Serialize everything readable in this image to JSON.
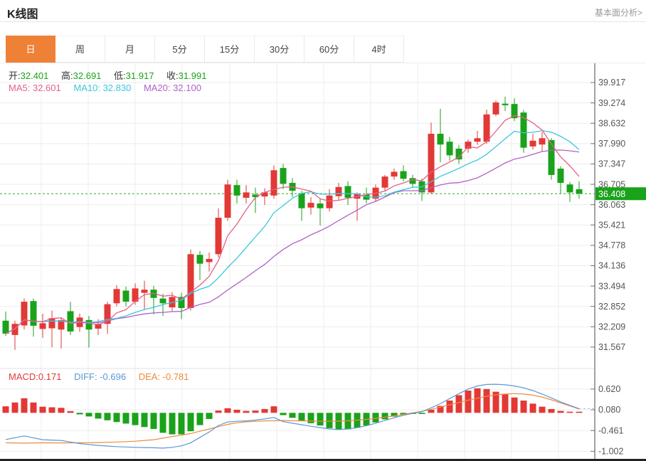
{
  "header": {
    "title": "K线图",
    "link": "基本面分析>"
  },
  "tabs": [
    {
      "label": "日",
      "active": true
    },
    {
      "label": "周",
      "active": false
    },
    {
      "label": "月",
      "active": false
    },
    {
      "label": "5分",
      "active": false
    },
    {
      "label": "15分",
      "active": false
    },
    {
      "label": "30分",
      "active": false
    },
    {
      "label": "60分",
      "active": false
    },
    {
      "label": "4时",
      "active": false
    }
  ],
  "ohlc": {
    "open_label": "开:",
    "open": "32.401",
    "high_label": "高:",
    "high": "32.691",
    "low_label": "低:",
    "low": "31.917",
    "close_label": "收:",
    "close": "31.991"
  },
  "ma": {
    "ma5_label": "MA5:",
    "ma5": "32.601",
    "ma10_label": "MA10:",
    "ma10": "32.830",
    "ma20_label": "MA20:",
    "ma20": "32.100"
  },
  "macd_legend": {
    "macd_label": "MACD:",
    "macd": "0.171",
    "diff_label": "DIFF:",
    "diff": "-0.696",
    "dea_label": "DEA:",
    "dea": "-0.781"
  },
  "colors": {
    "accent_orange": "#ef8137",
    "up_red": "#e23936",
    "down_green": "#1aa21a",
    "ma5_pink": "#e4608a",
    "ma10_cyan": "#3cc7dc",
    "ma20_purple": "#b160c8",
    "diff_blue": "#5b97d5",
    "dea_orange": "#ee8b3c",
    "price_line_green": "#2da52d",
    "badge_green": "#1aa21a",
    "grid": "#ededed",
    "axis_text": "#555555",
    "axis_line": "#444444"
  },
  "chart_data": {
    "type": "candlestick-with-macd",
    "title": "K线图 daily candlestick with MA5/MA10/MA20 and MACD",
    "price_panel": {
      "axis_ticks": [
        "39.917",
        "39.274",
        "38.632",
        "37.990",
        "37.347",
        "36.705",
        "36.063",
        "35.421",
        "34.778",
        "34.136",
        "33.494",
        "32.852",
        "32.209",
        "31.567"
      ],
      "current_price": "36.408",
      "ma_periods": [
        5,
        10,
        20
      ],
      "grid": true,
      "legend_position": "top-left",
      "candles_ohlc": [
        [
          32.401,
          32.691,
          31.917,
          31.991
        ],
        [
          31.95,
          32.4,
          31.48,
          32.3
        ],
        [
          32.25,
          33.1,
          32.12,
          33.0
        ],
        [
          33.02,
          33.1,
          31.9,
          32.24
        ],
        [
          32.14,
          32.62,
          31.86,
          32.32
        ],
        [
          32.16,
          32.72,
          31.56,
          32.48
        ],
        [
          32.12,
          32.5,
          31.52,
          32.42
        ],
        [
          32.7,
          33.0,
          31.95,
          32.06
        ],
        [
          32.2,
          32.62,
          32.05,
          32.5
        ],
        [
          32.42,
          32.55,
          31.55,
          32.12
        ],
        [
          32.15,
          32.45,
          31.95,
          32.3
        ],
        [
          32.3,
          33.0,
          31.98,
          32.92
        ],
        [
          32.95,
          33.52,
          32.85,
          33.4
        ],
        [
          33.35,
          33.48,
          32.85,
          33.0
        ],
        [
          33.0,
          33.58,
          32.9,
          33.42
        ],
        [
          33.28,
          33.66,
          32.75,
          33.38
        ],
        [
          33.38,
          33.5,
          32.6,
          33.12
        ],
        [
          33.1,
          33.25,
          32.55,
          32.95
        ],
        [
          32.82,
          33.3,
          32.7,
          33.15
        ],
        [
          33.15,
          33.28,
          32.45,
          32.8
        ],
        [
          32.8,
          34.65,
          32.72,
          34.5
        ],
        [
          34.48,
          34.6,
          33.68,
          34.2
        ],
        [
          34.25,
          34.55,
          33.95,
          34.35
        ],
        [
          34.5,
          35.95,
          34.4,
          35.65
        ],
        [
          35.65,
          36.85,
          35.55,
          36.7
        ],
        [
          36.68,
          36.85,
          36.1,
          36.35
        ],
        [
          36.28,
          36.68,
          36.1,
          36.45
        ],
        [
          36.38,
          36.6,
          35.8,
          36.3
        ],
        [
          36.32,
          36.58,
          36.05,
          36.45
        ],
        [
          36.35,
          37.3,
          36.25,
          37.15
        ],
        [
          37.22,
          37.35,
          36.55,
          36.72
        ],
        [
          36.75,
          36.9,
          36.3,
          36.5
        ],
        [
          36.42,
          36.5,
          35.55,
          35.95
        ],
        [
          35.97,
          36.3,
          35.75,
          36.12
        ],
        [
          36.1,
          36.25,
          35.4,
          35.95
        ],
        [
          35.95,
          36.55,
          35.85,
          36.35
        ],
        [
          36.33,
          36.75,
          36.2,
          36.62
        ],
        [
          36.65,
          36.8,
          36.05,
          36.28
        ],
        [
          36.25,
          36.45,
          35.55,
          36.4
        ],
        [
          36.38,
          36.6,
          36.1,
          36.22
        ],
        [
          36.25,
          36.7,
          36.15,
          36.6
        ],
        [
          36.6,
          37.0,
          36.5,
          36.95
        ],
        [
          36.95,
          37.2,
          36.85,
          37.1
        ],
        [
          37.12,
          37.3,
          36.8,
          36.88
        ],
        [
          36.9,
          37.0,
          36.6,
          36.72
        ],
        [
          36.8,
          36.88,
          36.18,
          36.45
        ],
        [
          36.45,
          38.65,
          36.4,
          38.3
        ],
        [
          38.3,
          39.09,
          37.4,
          37.96
        ],
        [
          38.05,
          38.2,
          37.45,
          37.62
        ],
        [
          37.83,
          37.95,
          37.35,
          37.49
        ],
        [
          37.83,
          38.12,
          37.7,
          38.05
        ],
        [
          38.05,
          38.39,
          37.95,
          38.16
        ],
        [
          38.05,
          39.06,
          37.98,
          38.91
        ],
        [
          38.91,
          39.35,
          38.85,
          39.29
        ],
        [
          39.25,
          39.47,
          39.02,
          39.2
        ],
        [
          39.24,
          39.42,
          38.7,
          38.79
        ],
        [
          38.97,
          39.05,
          37.7,
          37.86
        ],
        [
          37.9,
          38.3,
          37.8,
          38.08
        ],
        [
          37.96,
          38.35,
          37.75,
          38.16
        ],
        [
          38.1,
          38.16,
          36.85,
          37.0
        ],
        [
          37.2,
          37.28,
          36.42,
          36.75
        ],
        [
          36.7,
          36.78,
          36.15,
          36.45
        ],
        [
          36.55,
          36.8,
          36.25,
          36.41
        ]
      ]
    },
    "macd_panel": {
      "axis_ticks": [
        "0.620",
        "0.080",
        "-0.461",
        "-1.002"
      ],
      "histogram_rule": "hist = 2 * (diff - dea)",
      "diff": [
        -0.696,
        -0.65,
        -0.6,
        -0.65,
        -0.7,
        -0.71,
        -0.72,
        -0.76,
        -0.8,
        -0.825,
        -0.85,
        -0.865,
        -0.88,
        -0.89,
        -0.9,
        -0.905,
        -0.91,
        -0.92,
        -0.9,
        -0.86,
        -0.78,
        -0.64,
        -0.5,
        -0.33,
        -0.24,
        -0.22,
        -0.21,
        -0.19,
        -0.16,
        -0.12,
        -0.23,
        -0.27,
        -0.31,
        -0.35,
        -0.385,
        -0.42,
        -0.435,
        -0.42,
        -0.385,
        -0.335,
        -0.27,
        -0.2,
        -0.13,
        -0.065,
        -0.015,
        0.03,
        0.13,
        0.24,
        0.37,
        0.5,
        0.62,
        0.7,
        0.74,
        0.745,
        0.73,
        0.7,
        0.65,
        0.58,
        0.49,
        0.39,
        0.285,
        0.195,
        0.11
      ],
      "dea": [
        -0.781,
        -0.785,
        -0.79,
        -0.785,
        -0.78,
        -0.782,
        -0.785,
        -0.782,
        -0.78,
        -0.778,
        -0.775,
        -0.768,
        -0.76,
        -0.75,
        -0.74,
        -0.72,
        -0.7,
        -0.66,
        -0.62,
        -0.58,
        -0.54,
        -0.48,
        -0.42,
        -0.36,
        -0.3,
        -0.26,
        -0.235,
        -0.22,
        -0.21,
        -0.205,
        -0.2,
        -0.205,
        -0.21,
        -0.215,
        -0.22,
        -0.22,
        -0.215,
        -0.205,
        -0.19,
        -0.17,
        -0.145,
        -0.115,
        -0.08,
        -0.04,
        0.0,
        0.04,
        0.09,
        0.15,
        0.21,
        0.27,
        0.33,
        0.38,
        0.43,
        0.47,
        0.49,
        0.5,
        0.49,
        0.46,
        0.41,
        0.34,
        0.26,
        0.18,
        0.1
      ]
    }
  }
}
